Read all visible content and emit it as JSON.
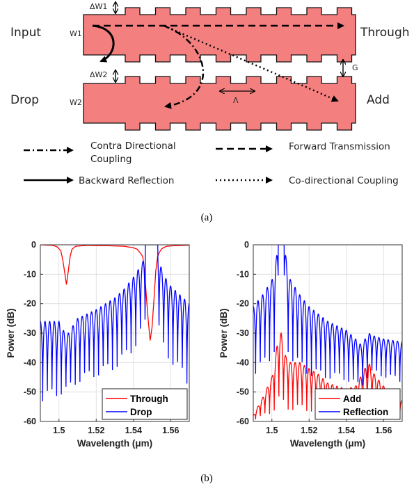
{
  "diagram": {
    "labels": {
      "input": "Input",
      "through": "Through",
      "drop": "Drop",
      "add": "Add",
      "w1": "W1",
      "w2": "W2",
      "dw1": "ΔW1",
      "dw2": "ΔW2",
      "gap": "G",
      "period": "Λ"
    },
    "waveguide_color": "#F47F7F",
    "legend": {
      "contra_line1": "Contra Directional",
      "contra_line2": "Coupling",
      "forward": "Forward Transmission",
      "backward": "Backward Reflection",
      "codirectional": "Co-directional Coupling"
    },
    "caption": "(a)"
  },
  "caption_b": "(b)",
  "chart_data": [
    {
      "type": "line",
      "xlabel": "Wavelength (μm)",
      "ylabel": "Power (dB)",
      "xlim": [
        1.49,
        1.57
      ],
      "ylim": [
        -60,
        0
      ],
      "xticks": [
        "1.5",
        "1.52",
        "1.54",
        "1.56"
      ],
      "yticks": [
        "0",
        "-10",
        "-20",
        "-30",
        "-40",
        "-50",
        "-60"
      ],
      "grid": true,
      "legend_position": "bottom-right",
      "series": [
        {
          "name": "Through",
          "color": "#FF0000",
          "x": [
            1.49,
            1.497,
            1.499,
            1.501,
            1.502,
            1.503,
            1.504,
            1.505,
            1.506,
            1.507,
            1.509,
            1.515,
            1.525,
            1.535,
            1.54,
            1.542,
            1.544,
            1.545,
            1.546,
            1.547,
            1.548,
            1.549,
            1.55,
            1.551,
            1.552,
            1.553,
            1.554,
            1.555,
            1.556,
            1.558,
            1.562,
            1.57
          ],
          "values": [
            0,
            -0.2,
            -0.7,
            -2.0,
            -5.0,
            -9.0,
            -13.5,
            -9.0,
            -4.0,
            -1.5,
            -0.5,
            -0.2,
            -0.3,
            -0.5,
            -1.0,
            -1.5,
            -3.0,
            -4.0,
            -9.0,
            -18.0,
            -26.0,
            -32.5,
            -28.0,
            -19.0,
            -9.0,
            -4.0,
            -2.5,
            -1.5,
            -1.0,
            -0.5,
            -0.3,
            -0.1
          ]
        },
        {
          "name": "Drop",
          "color": "#0000FF",
          "envelope_x": [
            1.49,
            1.5,
            1.504,
            1.51,
            1.52,
            1.53,
            1.535,
            1.54,
            1.543,
            1.545,
            1.5465,
            1.553,
            1.555,
            1.556,
            1.56,
            1.565,
            1.57
          ],
          "envelope_values": [
            -26,
            -26,
            -31,
            -25,
            -22,
            -18,
            -15,
            -11,
            -8,
            -6,
            0,
            0,
            -8,
            -10,
            -14,
            -17,
            -20
          ],
          "null_floor_values": [
            -60,
            -57,
            -55,
            -52,
            -50,
            -48,
            -45,
            -42,
            -38,
            -35,
            -35,
            -35,
            -40,
            -42,
            -46,
            -50,
            -55
          ]
        }
      ]
    },
    {
      "type": "line",
      "xlabel": "Wavelength (μm)",
      "ylabel": "Power (dB)",
      "xlim": [
        1.49,
        1.57
      ],
      "ylim": [
        -60,
        0
      ],
      "xticks": [
        "1.5",
        "1.52",
        "1.54",
        "1.56"
      ],
      "yticks": [
        "0",
        "-10",
        "-20",
        "-30",
        "-40",
        "-50",
        "-60"
      ],
      "grid": true,
      "legend_position": "bottom-right",
      "series": [
        {
          "name": "Add",
          "color": "#FF0000",
          "envelope_x": [
            1.49,
            1.495,
            1.5,
            1.502,
            1.5035,
            1.505,
            1.5075,
            1.51,
            1.515,
            1.52,
            1.525,
            1.53,
            1.54,
            1.545,
            1.55,
            1.552,
            1.555,
            1.56,
            1.57
          ],
          "envelope_values": [
            -58,
            -52,
            -45,
            -38,
            -30,
            -30,
            -38,
            -40,
            -40,
            -42,
            -44,
            -47,
            -49,
            -48,
            -42,
            -40,
            -44,
            -48,
            -53
          ],
          "null_floor_values": [
            -60,
            -60,
            -60,
            -60,
            -60,
            -60,
            -60,
            -60,
            -60,
            -60,
            -60,
            -60,
            -60,
            -60,
            -60,
            -60,
            -60,
            -60,
            -60
          ]
        },
        {
          "name": "Reflection",
          "color": "#0000FF",
          "envelope_x": [
            1.49,
            1.495,
            1.5,
            1.502,
            1.5035,
            1.5065,
            1.508,
            1.51,
            1.515,
            1.52,
            1.53,
            1.54,
            1.545,
            1.548,
            1.552,
            1.555,
            1.56,
            1.57
          ],
          "envelope_values": [
            -21,
            -17,
            -12,
            -6,
            0,
            0,
            -6,
            -12,
            -17,
            -21,
            -26,
            -29,
            -32,
            -34,
            -30,
            -31,
            -32,
            -33
          ],
          "null_floor_values": [
            -50,
            -48,
            -45,
            -42,
            -42,
            -42,
            -42,
            -45,
            -48,
            -50,
            -50,
            -50,
            -52,
            -52,
            -48,
            -47,
            -48,
            -50
          ]
        }
      ]
    }
  ]
}
